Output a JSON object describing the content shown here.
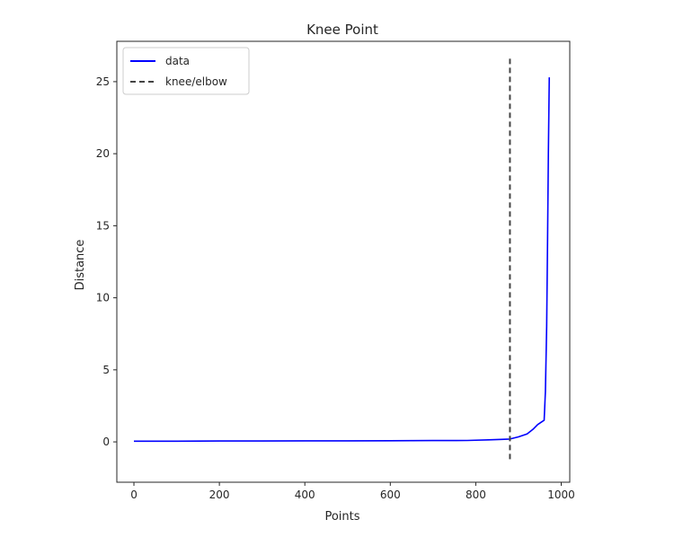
{
  "chart_data": {
    "type": "line",
    "title": "Knee Point",
    "xlabel": "Points",
    "ylabel": "Distance",
    "xlim": [
      -40,
      1020
    ],
    "ylim": [
      -2.8,
      27.8
    ],
    "xticks": [
      0,
      200,
      400,
      600,
      800,
      1000
    ],
    "yticks": [
      0,
      5,
      10,
      15,
      20,
      25
    ],
    "xtick_labels": [
      "0",
      "200",
      "400",
      "600",
      "800",
      "1000"
    ],
    "ytick_labels": [
      "0",
      "5",
      "10",
      "15",
      "20",
      "25"
    ],
    "grid": false,
    "legend_position": "top-left",
    "series": [
      {
        "name": "data",
        "color": "#0000ff",
        "x": [
          0,
          100,
          200,
          300,
          400,
          500,
          600,
          700,
          780,
          830,
          860,
          880,
          900,
          920,
          935,
          945,
          955,
          960,
          963,
          966,
          968,
          970,
          972
        ],
        "y": [
          0.05,
          0.05,
          0.06,
          0.06,
          0.07,
          0.07,
          0.08,
          0.09,
          0.1,
          0.14,
          0.17,
          0.2,
          0.35,
          0.55,
          0.9,
          1.2,
          1.4,
          1.5,
          3.5,
          8,
          14,
          20,
          25.3
        ]
      }
    ],
    "vlines": [
      {
        "name": "knee/elbow",
        "x": 880,
        "y0": -1.2,
        "y1": 26.6,
        "color": "#444444",
        "style": "dashed"
      }
    ]
  }
}
